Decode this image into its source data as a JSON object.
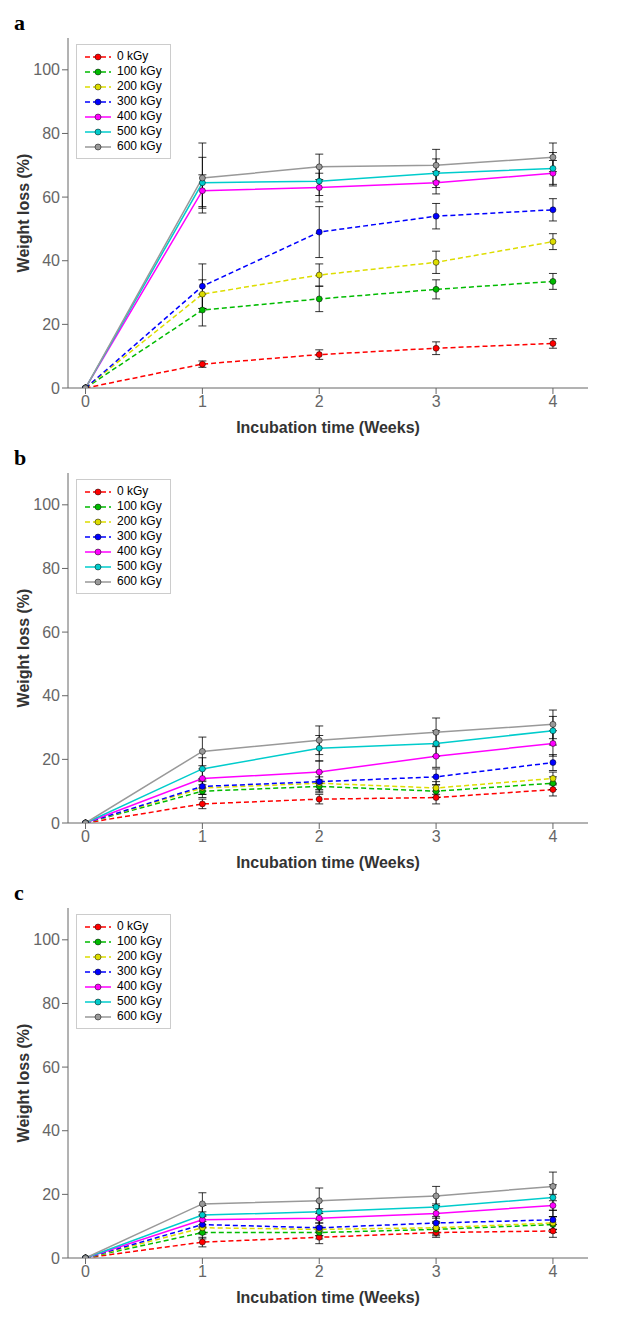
{
  "chart_data": [
    {
      "type": "line",
      "title": "a",
      "x_label": "Incubation time (Weeks)",
      "y_label": "Weight loss (%)",
      "x": [
        0,
        1,
        2,
        3,
        4
      ],
      "xlim": [
        -0.15,
        4.3
      ],
      "xticks": [
        0,
        1,
        2,
        3,
        4
      ],
      "ylim": [
        0,
        110
      ],
      "yticks": [
        0,
        20,
        40,
        60,
        80,
        100
      ],
      "grid": false,
      "legend": "upper left",
      "series": [
        {
          "name": "0 kGy",
          "color": "#FF0000",
          "line_style": "dashed",
          "marker": "circle",
          "values": [
            0,
            7.5,
            10.5,
            12.5,
            14.0
          ],
          "errors": [
            0,
            1.0,
            1.5,
            2.0,
            1.5
          ]
        },
        {
          "name": "100 kGy",
          "color": "#00BB00",
          "line_style": "dashed",
          "marker": "circle",
          "values": [
            0,
            24.5,
            28.0,
            31.0,
            33.5
          ],
          "errors": [
            0,
            5.0,
            4.0,
            3.0,
            2.5
          ]
        },
        {
          "name": "200 kGy",
          "color": "#DDDD00",
          "line_style": "dashed",
          "marker": "circle",
          "values": [
            0,
            29.5,
            35.5,
            39.5,
            46.0
          ],
          "errors": [
            0,
            4.5,
            3.5,
            3.5,
            2.5
          ]
        },
        {
          "name": "300 kGy",
          "color": "#0000FF",
          "line_style": "dashed",
          "marker": "circle",
          "values": [
            0,
            32.0,
            49.0,
            54.0,
            56.0
          ],
          "errors": [
            0,
            7.0,
            8.0,
            4.0,
            3.5
          ]
        },
        {
          "name": "400 kGy",
          "color": "#FF00FF",
          "line_style": "solid",
          "marker": "circle",
          "values": [
            0,
            62.0,
            63.0,
            64.5,
            67.5
          ],
          "errors": [
            0,
            5.0,
            4.5,
            3.5,
            4.0
          ]
        },
        {
          "name": "500 kGy",
          "color": "#00CCCC",
          "line_style": "solid",
          "marker": "circle",
          "values": [
            0,
            64.5,
            65.0,
            67.5,
            69.0
          ],
          "errors": [
            0,
            8.0,
            4.5,
            4.5,
            5.0
          ]
        },
        {
          "name": "600 kGy",
          "color": "#999999",
          "line_style": "solid",
          "marker": "circle",
          "values": [
            0,
            66.0,
            69.5,
            70.0,
            72.5
          ],
          "errors": [
            0,
            11.0,
            4.0,
            5.0,
            4.5
          ]
        }
      ]
    },
    {
      "type": "line",
      "title": "b",
      "x_label": "Incubation time (Weeks)",
      "y_label": "Weight loss (%)",
      "x": [
        0,
        1,
        2,
        3,
        4
      ],
      "xlim": [
        -0.15,
        4.3
      ],
      "xticks": [
        0,
        1,
        2,
        3,
        4
      ],
      "ylim": [
        0,
        110
      ],
      "yticks": [
        0,
        20,
        40,
        60,
        80,
        100
      ],
      "grid": false,
      "legend": "upper left",
      "series": [
        {
          "name": "0 kGy",
          "color": "#FF0000",
          "line_style": "dashed",
          "marker": "circle",
          "values": [
            0,
            6.0,
            7.5,
            8.0,
            10.5
          ],
          "errors": [
            0,
            1.5,
            1.5,
            2.0,
            2.0
          ]
        },
        {
          "name": "100 kGy",
          "color": "#00BB00",
          "line_style": "dashed",
          "marker": "circle",
          "values": [
            0,
            10.0,
            11.5,
            10.0,
            12.5
          ],
          "errors": [
            0,
            2.0,
            2.0,
            2.0,
            2.0
          ]
        },
        {
          "name": "200 kGy",
          "color": "#DDDD00",
          "line_style": "dashed",
          "marker": "circle",
          "values": [
            0,
            11.0,
            12.5,
            11.0,
            14.0
          ],
          "errors": [
            0,
            2.0,
            2.0,
            2.0,
            2.0
          ]
        },
        {
          "name": "300 kGy",
          "color": "#0000FF",
          "line_style": "dashed",
          "marker": "circle",
          "values": [
            0,
            11.5,
            13.0,
            14.5,
            19.0
          ],
          "errors": [
            0,
            2.5,
            3.0,
            2.5,
            2.5
          ]
        },
        {
          "name": "400 kGy",
          "color": "#FF00FF",
          "line_style": "solid",
          "marker": "circle",
          "values": [
            0,
            14.0,
            16.0,
            21.0,
            25.0
          ],
          "errors": [
            0,
            3.0,
            3.5,
            3.5,
            4.0
          ]
        },
        {
          "name": "500 kGy",
          "color": "#00CCCC",
          "line_style": "solid",
          "marker": "circle",
          "values": [
            0,
            17.0,
            23.5,
            25.0,
            29.0
          ],
          "errors": [
            0,
            3.5,
            4.0,
            4.0,
            4.5
          ]
        },
        {
          "name": "600 kGy",
          "color": "#999999",
          "line_style": "solid",
          "marker": "circle",
          "values": [
            0,
            22.5,
            26.0,
            28.5,
            31.0
          ],
          "errors": [
            0,
            4.5,
            4.5,
            4.5,
            4.5
          ]
        }
      ]
    },
    {
      "type": "line",
      "title": "c",
      "x_label": "Incubation time (Weeks)",
      "y_label": "Weight loss (%)",
      "x": [
        0,
        1,
        2,
        3,
        4
      ],
      "xlim": [
        -0.15,
        4.3
      ],
      "xticks": [
        0,
        1,
        2,
        3,
        4
      ],
      "ylim": [
        0,
        110
      ],
      "yticks": [
        0,
        20,
        40,
        60,
        80,
        100
      ],
      "grid": false,
      "legend": "upper left",
      "series": [
        {
          "name": "0 kGy",
          "color": "#FF0000",
          "line_style": "dashed",
          "marker": "circle",
          "values": [
            0,
            5.0,
            6.5,
            8.0,
            8.5
          ],
          "errors": [
            0,
            1.5,
            2.0,
            1.5,
            2.0
          ]
        },
        {
          "name": "100 kGy",
          "color": "#00BB00",
          "line_style": "dashed",
          "marker": "circle",
          "values": [
            0,
            8.0,
            8.0,
            9.0,
            10.5
          ],
          "errors": [
            0,
            2.0,
            2.0,
            2.0,
            2.5
          ]
        },
        {
          "name": "200 kGy",
          "color": "#DDDD00",
          "line_style": "dashed",
          "marker": "circle",
          "values": [
            0,
            9.5,
            9.0,
            9.5,
            11.0
          ],
          "errors": [
            0,
            2.0,
            2.0,
            2.0,
            2.0
          ]
        },
        {
          "name": "300 kGy",
          "color": "#0000FF",
          "line_style": "dashed",
          "marker": "circle",
          "values": [
            0,
            10.5,
            9.5,
            11.0,
            12.0
          ],
          "errors": [
            0,
            2.5,
            2.5,
            2.0,
            3.0
          ]
        },
        {
          "name": "400 kGy",
          "color": "#FF00FF",
          "line_style": "solid",
          "marker": "circle",
          "values": [
            0,
            12.0,
            12.5,
            14.0,
            16.5
          ],
          "errors": [
            0,
            2.5,
            3.0,
            3.0,
            3.5
          ]
        },
        {
          "name": "500 kGy",
          "color": "#00CCCC",
          "line_style": "solid",
          "marker": "circle",
          "values": [
            0,
            13.5,
            14.5,
            16.0,
            19.0
          ],
          "errors": [
            0,
            3.0,
            3.5,
            3.5,
            4.0
          ]
        },
        {
          "name": "600 kGy",
          "color": "#999999",
          "line_style": "solid",
          "marker": "circle",
          "values": [
            0,
            17.0,
            18.0,
            19.5,
            22.5
          ],
          "errors": [
            0,
            3.5,
            4.0,
            3.0,
            4.5
          ]
        }
      ]
    }
  ]
}
